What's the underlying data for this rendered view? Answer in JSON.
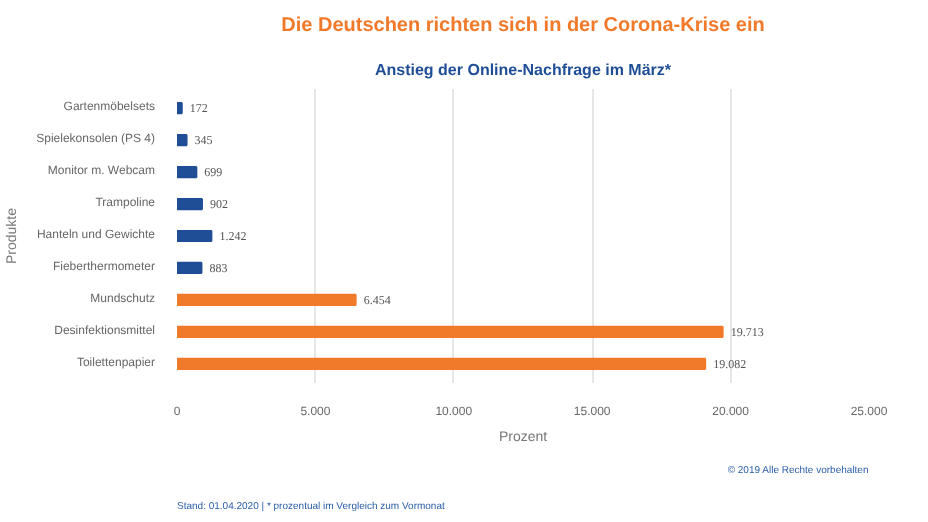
{
  "chart_data": {
    "type": "bar",
    "orientation": "horizontal",
    "title": "Die Deutschen richten sich in der Corona-Krise ein",
    "subtitle": "Anstieg der Online-Nachfrage im März*",
    "xlabel": "Prozent",
    "ylabel": "Produkte",
    "categories": [
      "Gartenmöbelsets",
      "Spielekonsolen (PS 4)",
      "Monitor m. Webcam",
      "Trampoline",
      "Hanteln und Gewichte",
      "Fieberthermometer",
      "Mundschutz",
      "Desinfektionsmittel",
      "Toilettenpapier"
    ],
    "values": [
      172,
      345,
      699,
      902,
      1242,
      883,
      6454,
      19713,
      19082
    ],
    "value_labels": [
      "172",
      "345",
      "699",
      "902",
      "1.242",
      "883",
      "6.454",
      "19.713",
      "19.082"
    ],
    "colors": [
      "#1f4e96",
      "#1f4e96",
      "#1f4e96",
      "#1f4e96",
      "#1f4e96",
      "#1f4e96",
      "#f07a2a",
      "#f07a2a",
      "#f07a2a"
    ],
    "xlim": [
      0,
      25000
    ],
    "xticks": [
      0,
      {
        "value": 5000,
        "label": "5.000"
      },
      {
        "value": 10000,
        "label": "10.000"
      },
      {
        "value": 15000,
        "label": "15.000"
      },
      {
        "value": 20000,
        "label": "20.000"
      },
      {
        "value": 25000,
        "label": "25.000"
      }
    ],
    "grid": "x",
    "annotations": [
      "Stand: 01.04.2020 | * prozentual im Vergleich zum Vormonat",
      "© 2019 Alle Rechte vorbehalten"
    ]
  }
}
